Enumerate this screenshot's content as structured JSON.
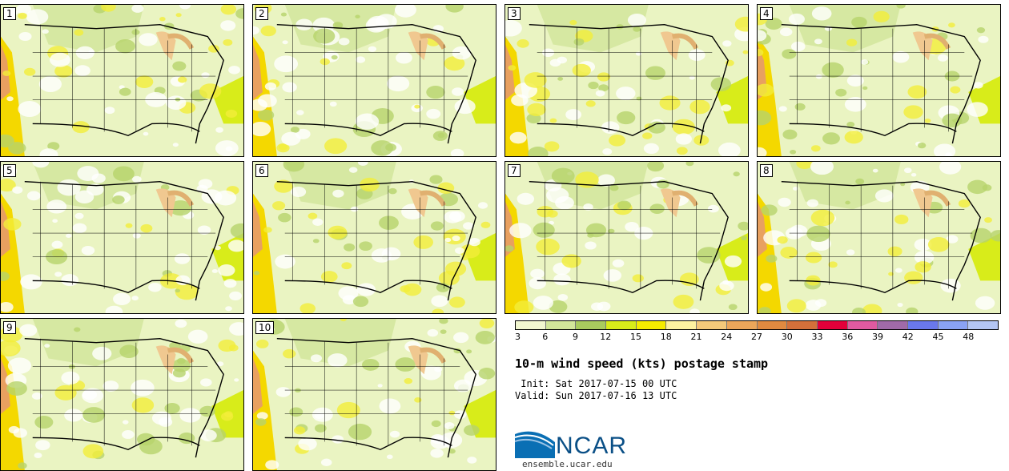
{
  "panels": [
    {
      "label": "1"
    },
    {
      "label": "2"
    },
    {
      "label": "3"
    },
    {
      "label": "4"
    },
    {
      "label": "5"
    },
    {
      "label": "6"
    },
    {
      "label": "7"
    },
    {
      "label": "8"
    },
    {
      "label": "9"
    },
    {
      "label": "10"
    }
  ],
  "colorbar": {
    "ticks": [
      "3",
      "6",
      "9",
      "12",
      "15",
      "18",
      "21",
      "24",
      "27",
      "30",
      "33",
      "36",
      "39",
      "42",
      "45",
      "48"
    ],
    "colors": [
      "#f2f7d0",
      "#d2e69a",
      "#a9cc5e",
      "#d8ec1a",
      "#f5ec00",
      "#fdf2a0",
      "#f4c97a",
      "#eca65a",
      "#e08a40",
      "#d4703a",
      "#e3003a",
      "#e05aa0",
      "#a06aa8",
      "#6a78ec",
      "#8aa2f4",
      "#b4c6f4"
    ]
  },
  "title": "10-m wind speed (kts) postage stamp",
  "init": " Init: Sat 2017-07-15 00 UTC",
  "valid": "Valid: Sun 2017-07-16 13 UTC",
  "logo": {
    "text": "NCAR",
    "url": "ensemble.ucar.edu"
  }
}
